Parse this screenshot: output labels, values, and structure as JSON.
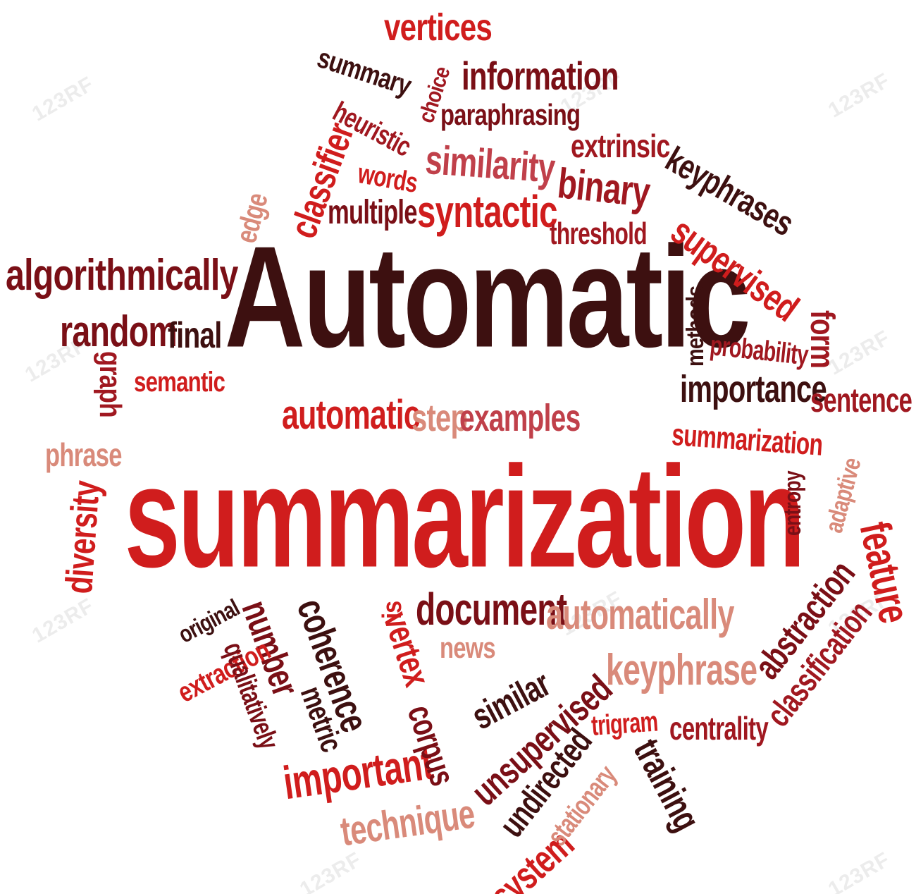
{
  "cloud": {
    "main1": "Automatic",
    "main2": "summarization",
    "w": {
      "vertices": "vertices",
      "summary": "summary",
      "choice": "choice",
      "information": "information",
      "heuristic": "heuristic",
      "paraphrasing": "paraphrasing",
      "classifier": "classifier",
      "similarity": "similarity",
      "extrinsic": "extrinsic",
      "keyphrases": "keyphrases",
      "words": "words",
      "binary": "binary",
      "edge": "edge",
      "multiple": "multiple",
      "syntactic": "syntactic",
      "threshold": "threshold",
      "supervised": "supervised",
      "algorithmically": "algorithmically",
      "random": "random",
      "final": "final",
      "methods": "methods",
      "probability": "probability",
      "form": "form",
      "graph": "graph",
      "semantic": "semantic",
      "importance": "importance",
      "sentence": "sentence",
      "automatic": "automatic",
      "step": "step",
      "examples": "examples",
      "summarization_small": "summarization",
      "phrase": "phrase",
      "entropy": "entropy",
      "adaptive": "adaptive",
      "diversity": "diversity",
      "feature": "feature",
      "original": "original",
      "number": "number",
      "coherence": "coherence",
      "is": "is",
      "document": "document",
      "automatically": "automatically",
      "abstraction": "abstraction",
      "extraction": "extraction",
      "news": "news",
      "metric": "metric",
      "qualitatively": "qualitatively",
      "vertex": "vertex",
      "similar": "similar",
      "keyphrase": "keyphrase",
      "classification": "classification",
      "corpus": "corpus",
      "unsupervised": "unsupervised",
      "trigram": "trigram",
      "centrality": "centrality",
      "important": "important",
      "undirected": "undirected",
      "training": "training",
      "technique": "technique",
      "stationary": "stationary",
      "system": "system"
    },
    "watermark": "123RF"
  }
}
